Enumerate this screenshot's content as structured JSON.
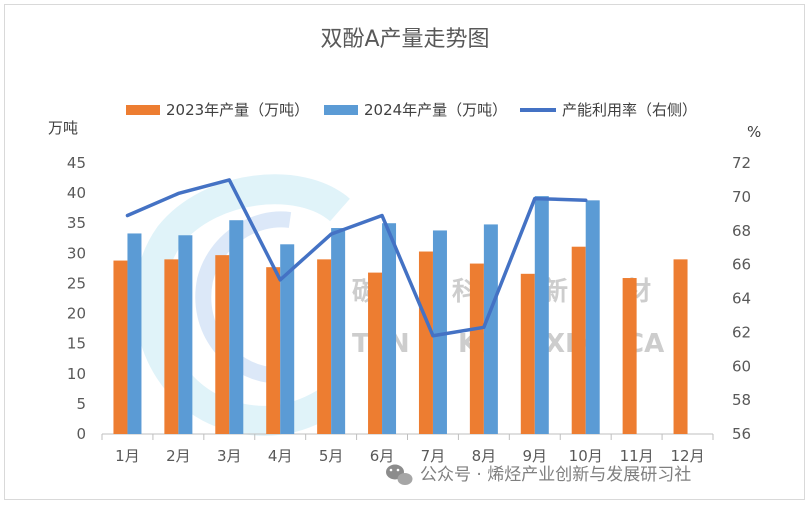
{
  "chart_data": {
    "type": "bar",
    "title": "双酚A产量走势图",
    "categories": [
      "1月",
      "2月",
      "3月",
      "4月",
      "5月",
      "6月",
      "7月",
      "8月",
      "9月",
      "10月",
      "11月",
      "12月"
    ],
    "series": [
      {
        "name": "2023年产量（万吨）",
        "type": "bar",
        "axis": "left",
        "color": "#ED7D31",
        "values": [
          28.8,
          29.0,
          29.7,
          27.7,
          29.0,
          26.8,
          30.3,
          28.3,
          26.6,
          31.1,
          25.9,
          29.0
        ]
      },
      {
        "name": "2024年产量（万吨）",
        "type": "bar",
        "axis": "left",
        "color": "#5B9BD5",
        "values": [
          33.3,
          33.0,
          35.5,
          31.5,
          34.2,
          35.0,
          33.8,
          34.8,
          39.5,
          38.8,
          null,
          null
        ]
      },
      {
        "name": "产能利用率（右侧）",
        "type": "line",
        "axis": "right",
        "color": "#4472C4",
        "values": [
          68.9,
          70.2,
          71.0,
          65.1,
          67.8,
          68.9,
          61.8,
          62.3,
          69.9,
          69.8,
          null,
          null
        ]
      }
    ],
    "y_left": {
      "label": "万吨",
      "ylim": [
        0,
        45
      ],
      "ticks": [
        0,
        5,
        10,
        15,
        20,
        25,
        30,
        35,
        40,
        45
      ]
    },
    "y_right": {
      "label": "%",
      "ylim": [
        56,
        72
      ],
      "ticks": [
        56,
        58,
        60,
        62,
        64,
        66,
        68,
        70,
        72
      ]
    },
    "legend_position": "top"
  },
  "watermark": {
    "chars": [
      "碳",
      "科",
      "新",
      "材"
    ],
    "letters": [
      "TAN",
      "KE",
      "XIN",
      "CA"
    ]
  },
  "footer": {
    "text": "公众号 · 烯烃产业创新与发展研习社"
  }
}
